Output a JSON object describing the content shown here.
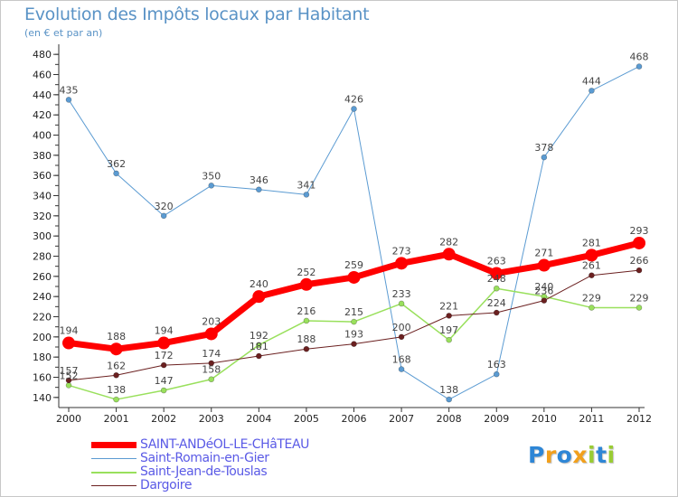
{
  "chart_data": {
    "type": "line",
    "title": "Evolution des Impôts locaux par Habitant",
    "subtitle": "(en € et par an)",
    "xlabel": "",
    "ylabel": "",
    "x": [
      "2000",
      "2001",
      "2002",
      "2003",
      "2004",
      "2005",
      "2006",
      "2007",
      "2008",
      "2009",
      "2010",
      "2011",
      "2012"
    ],
    "ylim": [
      130,
      490
    ],
    "yticks": [
      140,
      160,
      180,
      200,
      220,
      240,
      260,
      280,
      300,
      320,
      340,
      360,
      380,
      400,
      420,
      440,
      460,
      480
    ],
    "grid": false,
    "series": [
      {
        "name": "Saint-Romain-en-Gier",
        "color": "#5b9bd2",
        "width": 1,
        "marker": 3,
        "values": [
          435,
          362,
          320,
          350,
          346,
          341,
          426,
          168,
          138,
          163,
          378,
          444,
          468
        ]
      },
      {
        "name": "Saint-Jean-de-Touslas",
        "color": "#99e05c",
        "width": 1.5,
        "marker": 3,
        "values": [
          152,
          138,
          147,
          158,
          192,
          216,
          215,
          233,
          197,
          248,
          240,
          229,
          229
        ]
      },
      {
        "name": "Dargoire",
        "color": "#6b2020",
        "width": 1,
        "marker": 3,
        "values": [
          157,
          162,
          172,
          174,
          181,
          188,
          193,
          200,
          221,
          224,
          236,
          261,
          266
        ]
      },
      {
        "name": "SAINT-ANDéOL-LE-CHâTEAU",
        "color": "#ff0000",
        "width": 7,
        "marker": 7,
        "values": [
          194,
          188,
          194,
          203,
          240,
          252,
          259,
          273,
          282,
          263,
          271,
          281,
          293
        ]
      }
    ],
    "legend": [
      {
        "name": "SAINT-ANDéOL-LE-CHâTEAU",
        "color": "#ff0000",
        "width": 7
      },
      {
        "name": "Saint-Romain-en-Gier",
        "color": "#5b9bd2",
        "width": 1
      },
      {
        "name": "Saint-Jean-de-Touslas",
        "color": "#99e05c",
        "width": 1.5
      },
      {
        "name": "Dargoire",
        "color": "#6b2020",
        "width": 1
      }
    ]
  },
  "brand": {
    "letters": [
      {
        "ch": "P",
        "color": "#2e86d6"
      },
      {
        "ch": "r",
        "color": "#f2a01c"
      },
      {
        "ch": "o",
        "color": "#2e86d6"
      },
      {
        "ch": "x",
        "color": "#f2a01c"
      },
      {
        "ch": "i",
        "color": "#99cc33"
      },
      {
        "ch": "t",
        "color": "#2e86d6"
      },
      {
        "ch": "i",
        "color": "#99cc33"
      }
    ]
  }
}
